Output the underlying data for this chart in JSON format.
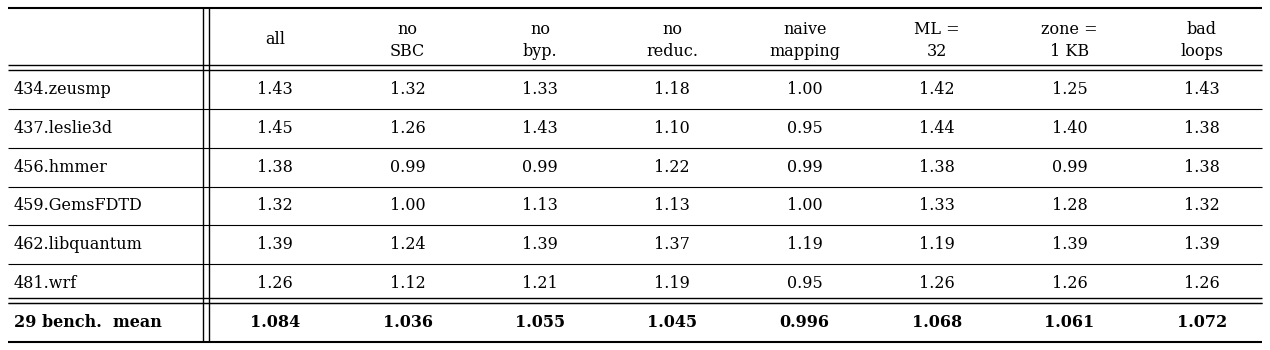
{
  "col_headers_top": [
    "all",
    "no",
    "no",
    "no",
    "naive",
    "ML =",
    "zone =",
    "bad"
  ],
  "col_headers_bot": [
    "",
    "SBC",
    "byp.",
    "reduc.",
    "mapping",
    "32",
    "1 KB",
    "loops"
  ],
  "row_labels": [
    "434.zeusmp",
    "437.leslie3d",
    "456.hmmer",
    "459.GemsFDTD",
    "462.libquantum",
    "481.wrf",
    "29 bench.  mean"
  ],
  "data": [
    [
      "1.43",
      "1.32",
      "1.33",
      "1.18",
      "1.00",
      "1.42",
      "1.25",
      "1.43"
    ],
    [
      "1.45",
      "1.26",
      "1.43",
      "1.10",
      "0.95",
      "1.44",
      "1.40",
      "1.38"
    ],
    [
      "1.38",
      "0.99",
      "0.99",
      "1.22",
      "0.99",
      "1.38",
      "0.99",
      "1.38"
    ],
    [
      "1.32",
      "1.00",
      "1.13",
      "1.13",
      "1.00",
      "1.33",
      "1.28",
      "1.32"
    ],
    [
      "1.39",
      "1.24",
      "1.39",
      "1.37",
      "1.19",
      "1.19",
      "1.39",
      "1.39"
    ],
    [
      "1.26",
      "1.12",
      "1.21",
      "1.19",
      "0.95",
      "1.26",
      "1.26",
      "1.26"
    ],
    [
      "1.084",
      "1.036",
      "1.055",
      "1.045",
      "0.996",
      "1.068",
      "1.061",
      "1.072"
    ]
  ],
  "bg_color": "#ffffff",
  "text_color": "#000000",
  "font_size": 11.5,
  "fig_width": 12.7,
  "fig_height": 3.5,
  "dpi": 100
}
